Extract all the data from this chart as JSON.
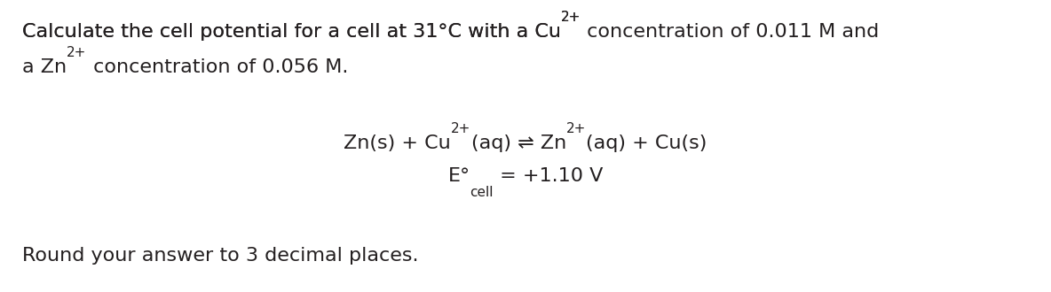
{
  "bg_color": "#ffffff",
  "body_fontsize": 16,
  "eq_fontsize": 16,
  "super_fontsize": 11,
  "sub_fontsize": 11,
  "font_family": "DejaVu Sans",
  "text_color": "#231f20",
  "fig_width": 11.84,
  "fig_height": 3.3,
  "dpi": 100
}
